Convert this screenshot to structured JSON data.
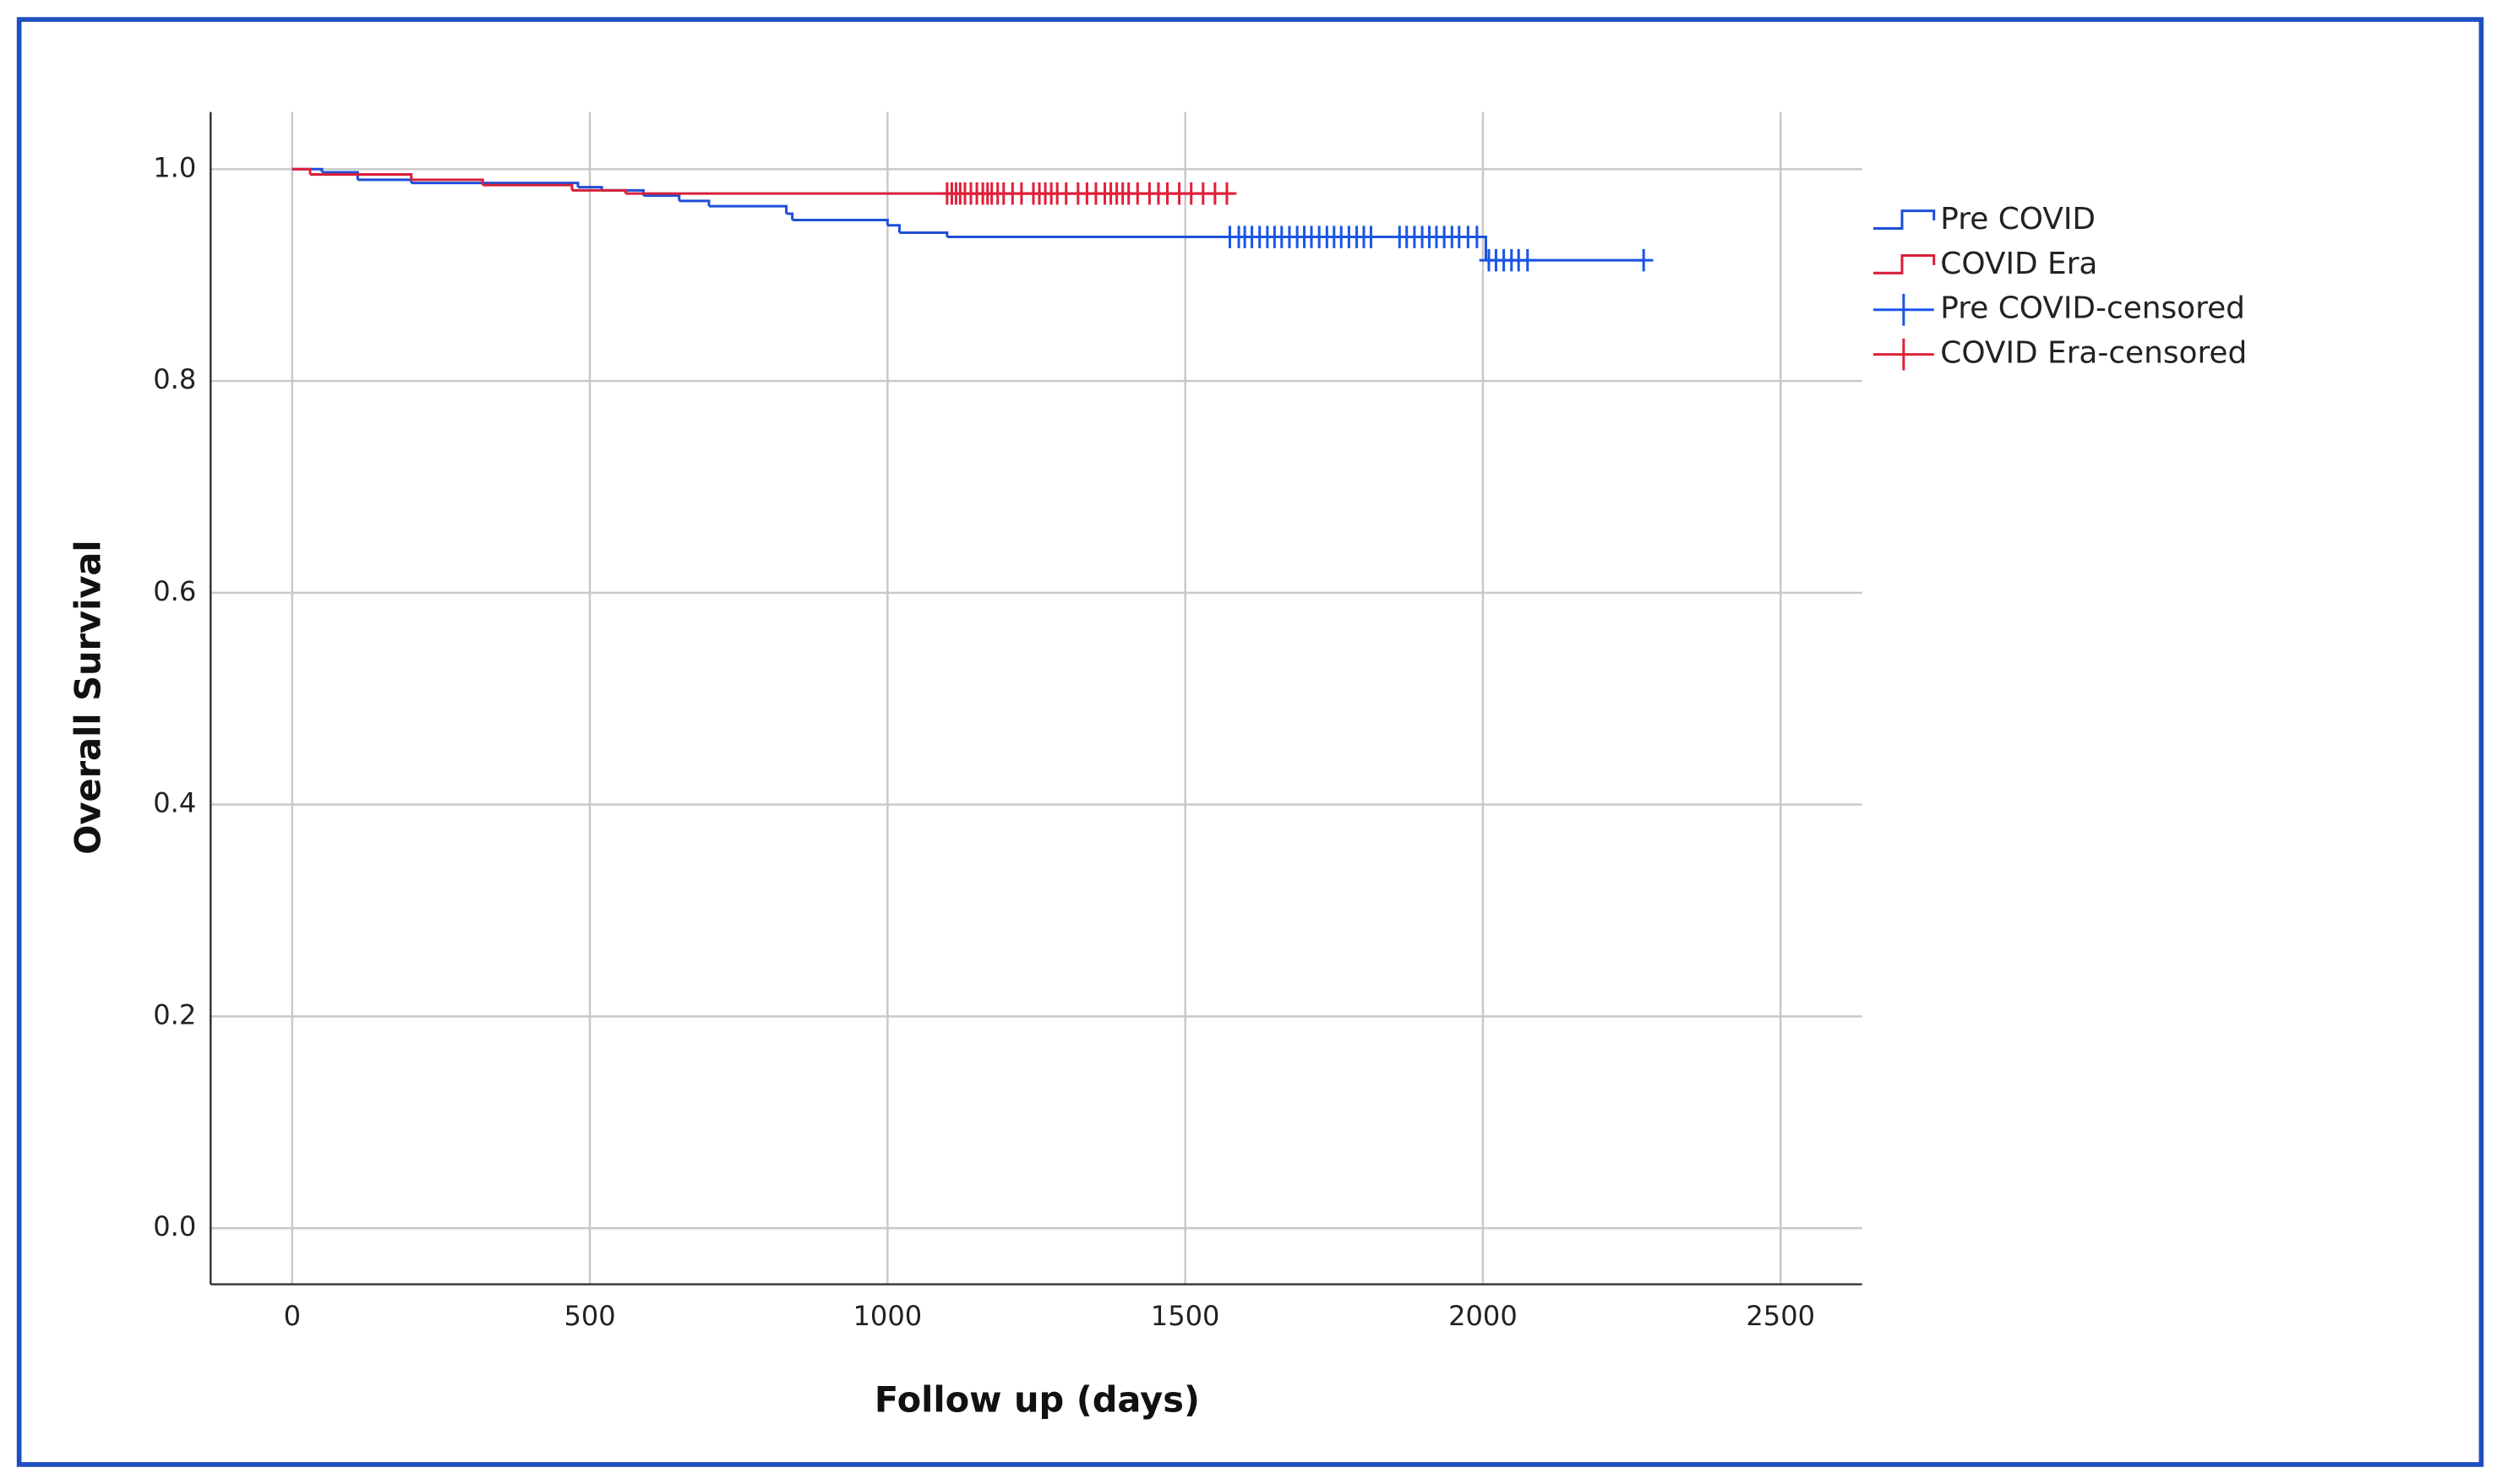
{
  "chart_data": {
    "type": "step",
    "x_label": "Follow up (days)",
    "y_label": "Overall Survival",
    "xlim": [
      -137,
      2637
    ],
    "ylim": [
      -0.053,
      1.054
    ],
    "xticks": [
      0,
      500,
      1000,
      1500,
      2000,
      2500
    ],
    "yticks": [
      {
        "value": 0,
        "label": "0.0"
      },
      0.2,
      0.4,
      0.6,
      0.8,
      {
        "value": 1,
        "label": "1.0"
      }
    ],
    "grid": true,
    "legend": "right",
    "series": [
      {
        "name": "Pre COVID",
        "color": "#1f4fd8",
        "marker": "step",
        "x": [
          0,
          50,
          110,
          200,
          480,
          520,
          590,
          650,
          700,
          830,
          840,
          1000,
          1020,
          1100,
          2005,
          2270
        ],
        "values": [
          1,
          0.997,
          0.99,
          0.987,
          0.983,
          0.98,
          0.975,
          0.97,
          0.965,
          0.958,
          0.952,
          0.947,
          0.94,
          0.936,
          0.914,
          0.914
        ]
      },
      {
        "name": "COVID Era",
        "color": "#d8203a",
        "marker": "step",
        "x": [
          0,
          30,
          200,
          320,
          470,
          560,
          1580
        ],
        "values": [
          1,
          0.995,
          0.99,
          0.985,
          0.98,
          0.977,
          0.977
        ]
      },
      {
        "name": "Pre COVID-censored",
        "color": "#1a55e6",
        "marker": "+",
        "x": [
          1575,
          1590,
          1600,
          1612,
          1625,
          1638,
          1650,
          1662,
          1675,
          1688,
          1700,
          1712,
          1725,
          1738,
          1750,
          1762,
          1775,
          1788,
          1800,
          1812,
          1860,
          1872,
          1885,
          1898,
          1910,
          1922,
          1935,
          1948,
          1960,
          1975,
          1990,
          2010,
          2022,
          2035,
          2048,
          2060,
          2075,
          2270
        ],
        "values": [
          0.936,
          0.936,
          0.936,
          0.936,
          0.936,
          0.936,
          0.936,
          0.936,
          0.936,
          0.936,
          0.936,
          0.936,
          0.936,
          0.936,
          0.936,
          0.936,
          0.936,
          0.936,
          0.936,
          0.936,
          0.936,
          0.936,
          0.936,
          0.936,
          0.936,
          0.936,
          0.936,
          0.936,
          0.936,
          0.936,
          0.936,
          0.914,
          0.914,
          0.914,
          0.914,
          0.914,
          0.914,
          0.914
        ]
      },
      {
        "name": "COVID Era-censored",
        "color": "#e0203a",
        "marker": "+",
        "x": [
          1100,
          1108,
          1115,
          1122,
          1130,
          1140,
          1150,
          1160,
          1168,
          1175,
          1185,
          1195,
          1210,
          1225,
          1245,
          1255,
          1265,
          1275,
          1285,
          1300,
          1320,
          1335,
          1350,
          1365,
          1375,
          1385,
          1395,
          1405,
          1420,
          1440,
          1455,
          1470,
          1490,
          1510,
          1530,
          1550,
          1570
        ],
        "values": [
          0.977,
          0.977,
          0.977,
          0.977,
          0.977,
          0.977,
          0.977,
          0.977,
          0.977,
          0.977,
          0.977,
          0.977,
          0.977,
          0.977,
          0.977,
          0.977,
          0.977,
          0.977,
          0.977,
          0.977,
          0.977,
          0.977,
          0.977,
          0.977,
          0.977,
          0.977,
          0.977,
          0.977,
          0.977,
          0.977,
          0.977,
          0.977,
          0.977,
          0.977,
          0.977,
          0.977,
          0.977
        ]
      }
    ]
  }
}
